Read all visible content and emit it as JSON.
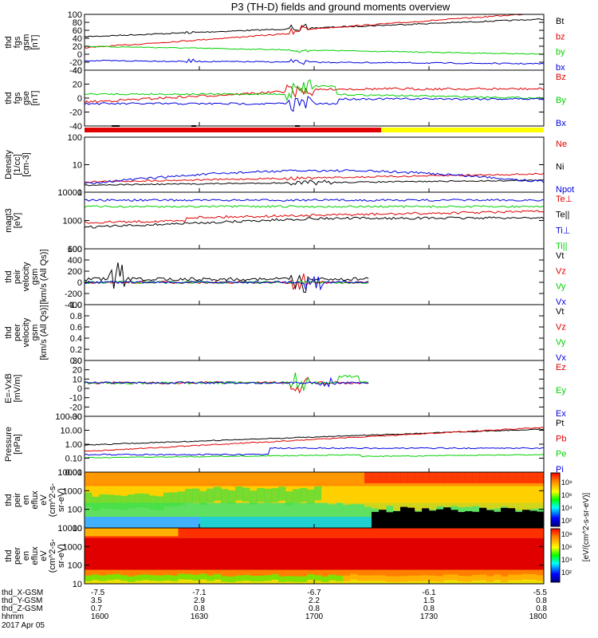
{
  "title": "P3 (TH-D) fields and ground moments overview",
  "colors": {
    "black": "#000000",
    "red": "#e00000",
    "green": "#00d000",
    "blue": "#0000e0",
    "yellow": "#ffff00"
  },
  "chart_data": [
    {
      "id": "fgs-gsm",
      "type": "line",
      "ylabel": [
        "thd",
        "fgs",
        "gsm",
        "[nT]"
      ],
      "yticks": [
        "100",
        "80",
        "60",
        "40",
        "20",
        "0",
        "-20",
        "-40"
      ],
      "legend": [
        "Bt",
        "bz",
        "by",
        "bx"
      ]
    },
    {
      "id": "fgs-gse",
      "type": "line",
      "ylabel": [
        "thd",
        "fgs",
        "gse",
        "[nT]"
      ],
      "yticks": [
        "40",
        "20",
        "0",
        "-20",
        "-40"
      ],
      "legend": [
        "Bz",
        "By",
        "Bx"
      ]
    },
    {
      "id": "density",
      "type": "line",
      "ylabel": [
        "Density",
        "[1/cc]",
        "[cm-3]"
      ],
      "yticks": [
        "100",
        "10",
        "1"
      ],
      "legend": [
        "Ne",
        "Ni",
        "Npot"
      ]
    },
    {
      "id": "temperature",
      "type": "line",
      "ylabel": [
        "magt3",
        "[eV]"
      ],
      "yticks": [
        "10000",
        "1000",
        "100"
      ],
      "legend": [
        "Te⊥",
        "Te||",
        "Ti⊥",
        "Ti||"
      ]
    },
    {
      "id": "peir-velocity",
      "type": "line",
      "ylabel": [
        "thd",
        "peir",
        "velocity",
        "gsm",
        "[km/s (All Qs)]"
      ],
      "yticks": [
        "600",
        "400",
        "200",
        "0",
        "-200",
        "-400"
      ],
      "legend": [
        "Vt",
        "Vz",
        "Vy",
        "Vx"
      ]
    },
    {
      "id": "peer-velocity",
      "type": "line",
      "ylabel": [
        "thd",
        "peer",
        "velocity",
        "gsm",
        "[km/s (All Qs)]"
      ],
      "yticks": [
        "1.0",
        "0.8",
        "0.6",
        "0.4",
        "0.2",
        "0.0"
      ],
      "legend": [
        "Vt",
        "Vz",
        "Vy",
        "Vx"
      ]
    },
    {
      "id": "efield",
      "type": "line",
      "ylabel": [
        "E=-VxB",
        "[mV/m]"
      ],
      "yticks": [
        "30",
        "20",
        "10",
        "0",
        "-10",
        "-20",
        "-30"
      ],
      "legend": [
        "Ez",
        "Ey",
        "Ex"
      ]
    },
    {
      "id": "pressure",
      "type": "line",
      "ylabel": [
        "Pressure",
        "[nPa]"
      ],
      "yticks": [
        "100.00",
        "10.00",
        "1.00",
        "0.10",
        "0.01"
      ],
      "legend": [
        "Pt",
        "Pb",
        "Pe",
        "Pi"
      ]
    },
    {
      "id": "peir-eflux",
      "type": "heatmap",
      "ylabel": [
        "thd",
        "peir",
        "en",
        "eflux",
        "eV",
        "(cm^2-s-",
        "sr-eV)"
      ],
      "yticks": [
        "10000",
        "1000",
        "100",
        "10"
      ]
    },
    {
      "id": "peer-eflux",
      "type": "heatmap",
      "ylabel": [
        "thd",
        "peer",
        "en",
        "eflux",
        "eV",
        "(cm^2-s-",
        "sr-eV)"
      ],
      "yticks": [
        "10000",
        "1000",
        "100",
        "10"
      ]
    }
  ],
  "colorbar": {
    "label": "[eV/(cm^2-s-sr-eV)]",
    "top_ticks": [
      "10⁸",
      "10⁶",
      "10⁴",
      "10²"
    ],
    "bottom_ticks": [
      "10⁸",
      "10⁶",
      "10⁴",
      "10²"
    ]
  },
  "xaxis": {
    "rows": [
      {
        "name": "thd_X-GSM",
        "values": [
          "-7.5",
          "-7.1",
          "-6.7",
          "-6.1",
          "-5.5"
        ]
      },
      {
        "name": "thd_Y-GSM",
        "values": [
          "3.5",
          "2.9",
          "2.2",
          "1.5",
          "0.8"
        ]
      },
      {
        "name": "thd_Z-GSM",
        "values": [
          "0.7",
          "0.8",
          "0.8",
          "0.8",
          "0.8"
        ]
      },
      {
        "name": "hhmm",
        "values": [
          "1600",
          "1630",
          "1700",
          "1730",
          "1800"
        ]
      }
    ],
    "date": "2017 Apr 05"
  }
}
